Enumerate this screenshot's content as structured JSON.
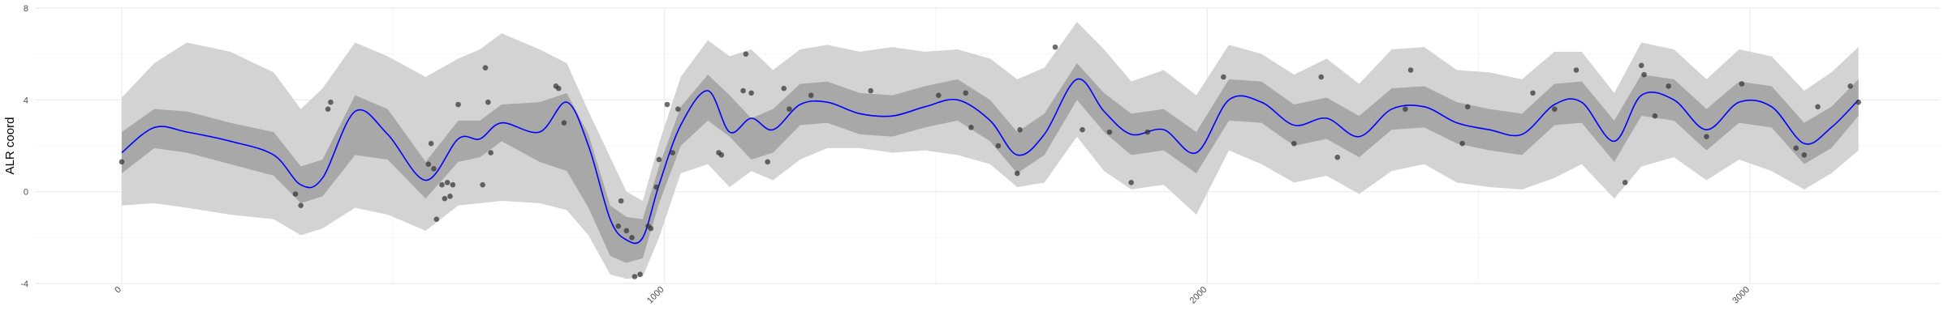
{
  "chart_data": {
    "type": "line",
    "title": "",
    "xlabel": "",
    "ylabel": "ALR coord",
    "xlim": [
      -160,
      3350
    ],
    "ylim": [
      -4,
      8
    ],
    "xticks": [
      0,
      1000,
      2000,
      3000
    ],
    "xtick_labels": [
      "0",
      "1000",
      "2000",
      "3000"
    ],
    "yticks": [
      -4,
      0,
      4,
      8
    ],
    "ytick_labels": [
      "-4",
      "0",
      "4",
      "8"
    ],
    "x_minor_ticks": [
      500,
      1500,
      2500
    ],
    "y_minor_ticks": [
      -2,
      2,
      6
    ],
    "grid": true,
    "legend": "none",
    "colors": {
      "mean_line": "#0000ff",
      "inner_band": "#a8a8a8",
      "outer_band": "#d3d3d3",
      "points": "#333333",
      "grid": "#ebebeb",
      "grid_minor": "#f4f4f4"
    },
    "series": [
      {
        "kind": "band",
        "level": "outer",
        "x": [
          0,
          60,
          120,
          200,
          280,
          330,
          370,
          430,
          490,
          560,
          620,
          660,
          700,
          770,
          820,
          860,
          900,
          930,
          960,
          990,
          1030,
          1080,
          1120,
          1160,
          1200,
          1250,
          1300,
          1360,
          1420,
          1480,
          1540,
          1600,
          1650,
          1700,
          1760,
          1810,
          1860,
          1920,
          1980,
          2040,
          2100,
          2160,
          2220,
          2280,
          2340,
          2400,
          2460,
          2520,
          2580,
          2640,
          2690,
          2750,
          2800,
          2860,
          2920,
          2980,
          3040,
          3100,
          3150,
          3200
        ],
        "lower": [
          -0.6,
          -0.5,
          -0.7,
          -1.0,
          -1.2,
          -1.9,
          -1.6,
          -0.7,
          -1.0,
          -1.7,
          -0.6,
          -0.5,
          -0.4,
          -0.5,
          -0.8,
          -1.9,
          -3.6,
          -3.8,
          -3.7,
          -2.0,
          0.8,
          1.2,
          0.2,
          0.9,
          0.5,
          1.4,
          1.9,
          1.9,
          1.7,
          1.8,
          1.6,
          1.2,
          0.2,
          0.4,
          2.4,
          0.9,
          0.1,
          0.3,
          -1.0,
          1.8,
          1.2,
          0.4,
          0.7,
          -0.1,
          0.9,
          1.2,
          0.4,
          0.2,
          0.1,
          0.6,
          1.2,
          -0.3,
          1.1,
          1.5,
          0.5,
          1.4,
          0.9,
          0.1,
          0.8,
          1.8
        ],
        "upper": [
          4.1,
          5.6,
          6.5,
          6.1,
          5.2,
          3.6,
          4.5,
          6.5,
          5.9,
          5.0,
          5.8,
          6.2,
          6.9,
          6.2,
          5.6,
          3.5,
          1.5,
          0.0,
          -0.4,
          2.1,
          5.0,
          6.6,
          5.9,
          6.2,
          5.3,
          6.2,
          6.4,
          6.1,
          6.3,
          6.1,
          6.2,
          5.8,
          4.9,
          5.4,
          7.4,
          6.2,
          4.8,
          5.3,
          4.2,
          6.4,
          6.0,
          5.1,
          5.8,
          4.7,
          6.2,
          6.3,
          5.3,
          5.2,
          4.9,
          6.1,
          6.1,
          4.3,
          6.5,
          6.2,
          4.9,
          6.2,
          5.9,
          4.4,
          5.2,
          6.3
        ]
      },
      {
        "kind": "band",
        "level": "inner",
        "x": [
          0,
          60,
          120,
          200,
          280,
          330,
          370,
          430,
          490,
          560,
          620,
          660,
          700,
          770,
          820,
          860,
          900,
          930,
          960,
          990,
          1030,
          1080,
          1120,
          1160,
          1200,
          1250,
          1300,
          1360,
          1420,
          1480,
          1540,
          1600,
          1650,
          1700,
          1760,
          1810,
          1860,
          1920,
          1980,
          2040,
          2100,
          2160,
          2220,
          2280,
          2340,
          2400,
          2460,
          2520,
          2580,
          2640,
          2690,
          2750,
          2800,
          2860,
          2920,
          2980,
          3040,
          3100,
          3150,
          3200
        ],
        "lower": [
          0.8,
          1.9,
          1.7,
          1.2,
          0.7,
          -0.5,
          -0.2,
          1.6,
          1.4,
          -0.3,
          1.3,
          1.5,
          2.2,
          1.3,
          0.9,
          -0.7,
          -2.8,
          -3.1,
          -2.9,
          -0.5,
          2.0,
          3.1,
          2.4,
          1.4,
          1.7,
          2.9,
          3.0,
          2.5,
          2.4,
          2.8,
          3.1,
          2.2,
          0.8,
          1.6,
          4.0,
          2.6,
          1.6,
          1.8,
          0.8,
          3.1,
          3.0,
          2.0,
          2.3,
          1.5,
          2.7,
          2.8,
          2.1,
          1.8,
          1.6,
          2.9,
          3.0,
          1.3,
          3.3,
          3.1,
          1.8,
          3.0,
          2.8,
          1.2,
          1.9,
          3.3
        ],
        "upper": [
          2.6,
          3.6,
          3.5,
          3.0,
          2.6,
          1.1,
          1.4,
          4.2,
          3.6,
          1.3,
          3.1,
          3.1,
          3.8,
          3.9,
          4.3,
          2.5,
          -0.6,
          -1.1,
          -1.2,
          1.1,
          3.7,
          5.1,
          4.2,
          3.2,
          3.6,
          4.7,
          4.8,
          4.3,
          4.2,
          4.6,
          4.9,
          4.0,
          2.6,
          3.4,
          5.6,
          4.3,
          3.4,
          3.6,
          2.6,
          4.9,
          4.8,
          3.8,
          4.1,
          3.3,
          4.5,
          4.6,
          3.9,
          3.6,
          3.4,
          4.7,
          4.8,
          3.1,
          5.1,
          4.9,
          3.6,
          4.8,
          4.6,
          3.0,
          3.7,
          4.9
        ]
      },
      {
        "kind": "line",
        "x": [
          0,
          60,
          120,
          200,
          280,
          330,
          370,
          430,
          490,
          560,
          620,
          660,
          700,
          770,
          820,
          860,
          900,
          930,
          960,
          990,
          1030,
          1080,
          1120,
          1160,
          1200,
          1250,
          1300,
          1360,
          1420,
          1480,
          1540,
          1600,
          1650,
          1700,
          1760,
          1810,
          1860,
          1920,
          1980,
          2040,
          2100,
          2160,
          2220,
          2280,
          2340,
          2400,
          2460,
          2520,
          2580,
          2640,
          2690,
          2750,
          2800,
          2860,
          2920,
          2980,
          3040,
          3100,
          3150,
          3200
        ],
        "y": [
          1.7,
          2.8,
          2.6,
          2.2,
          1.6,
          0.3,
          0.6,
          3.5,
          2.5,
          0.5,
          2.3,
          2.3,
          3.0,
          2.6,
          3.9,
          2.0,
          -1.2,
          -2.1,
          -2.0,
          0.3,
          2.9,
          4.4,
          2.6,
          3.2,
          2.7,
          3.8,
          3.9,
          3.4,
          3.3,
          3.7,
          4.0,
          3.1,
          1.6,
          2.5,
          4.9,
          3.5,
          2.5,
          2.7,
          1.7,
          4.0,
          3.9,
          2.9,
          3.2,
          2.4,
          3.6,
          3.7,
          3.0,
          2.7,
          2.5,
          3.8,
          3.9,
          2.2,
          4.2,
          4.0,
          2.7,
          3.9,
          3.7,
          2.1,
          2.8,
          4.0
        ]
      },
      {
        "kind": "points",
        "points": [
          [
            0,
            1.3
          ],
          [
            385,
            3.9
          ],
          [
            380,
            3.6
          ],
          [
            320,
            -0.1
          ],
          [
            330,
            -0.6
          ],
          [
            570,
            2.1
          ],
          [
            565,
            1.2
          ],
          [
            575,
            1.0
          ],
          [
            590,
            0.3
          ],
          [
            600,
            0.4
          ],
          [
            595,
            -0.3
          ],
          [
            605,
            -0.2
          ],
          [
            610,
            0.3
          ],
          [
            580,
            -1.2
          ],
          [
            620,
            3.8
          ],
          [
            670,
            5.4
          ],
          [
            675,
            3.9
          ],
          [
            680,
            1.7
          ],
          [
            665,
            0.3
          ],
          [
            805,
            4.5
          ],
          [
            800,
            4.6
          ],
          [
            815,
            3.0
          ],
          [
            915,
            -1.5
          ],
          [
            920,
            -0.4
          ],
          [
            930,
            -1.7
          ],
          [
            940,
            -2.0
          ],
          [
            945,
            -3.7
          ],
          [
            955,
            -3.6
          ],
          [
            970,
            -1.5
          ],
          [
            975,
            -1.6
          ],
          [
            985,
            0.2
          ],
          [
            990,
            1.4
          ],
          [
            1005,
            3.8
          ],
          [
            1015,
            1.7
          ],
          [
            1025,
            3.6
          ],
          [
            1100,
            1.7
          ],
          [
            1105,
            1.6
          ],
          [
            1150,
            6.0
          ],
          [
            1145,
            4.4
          ],
          [
            1160,
            4.3
          ],
          [
            1190,
            1.3
          ],
          [
            1220,
            4.5
          ],
          [
            1230,
            3.6
          ],
          [
            1270,
            4.2
          ],
          [
            1380,
            4.4
          ],
          [
            1505,
            4.2
          ],
          [
            1555,
            4.3
          ],
          [
            1565,
            2.8
          ],
          [
            1615,
            2.0
          ],
          [
            1650,
            0.8
          ],
          [
            1655,
            2.7
          ],
          [
            1720,
            6.3
          ],
          [
            1770,
            2.7
          ],
          [
            1820,
            2.6
          ],
          [
            1860,
            0.4
          ],
          [
            1890,
            2.6
          ],
          [
            2030,
            5.0
          ],
          [
            2160,
            2.1
          ],
          [
            2210,
            5.0
          ],
          [
            2240,
            1.5
          ],
          [
            2365,
            3.6
          ],
          [
            2375,
            5.3
          ],
          [
            2470,
            2.1
          ],
          [
            2480,
            3.7
          ],
          [
            2600,
            4.3
          ],
          [
            2640,
            3.6
          ],
          [
            2680,
            5.3
          ],
          [
            2770,
            0.4
          ],
          [
            2800,
            5.5
          ],
          [
            2805,
            5.1
          ],
          [
            2825,
            3.3
          ],
          [
            2850,
            4.6
          ],
          [
            2920,
            2.4
          ],
          [
            2985,
            4.7
          ],
          [
            3085,
            1.9
          ],
          [
            3100,
            1.6
          ],
          [
            3125,
            3.7
          ],
          [
            3185,
            4.6
          ],
          [
            3200,
            3.9
          ]
        ]
      }
    ]
  }
}
